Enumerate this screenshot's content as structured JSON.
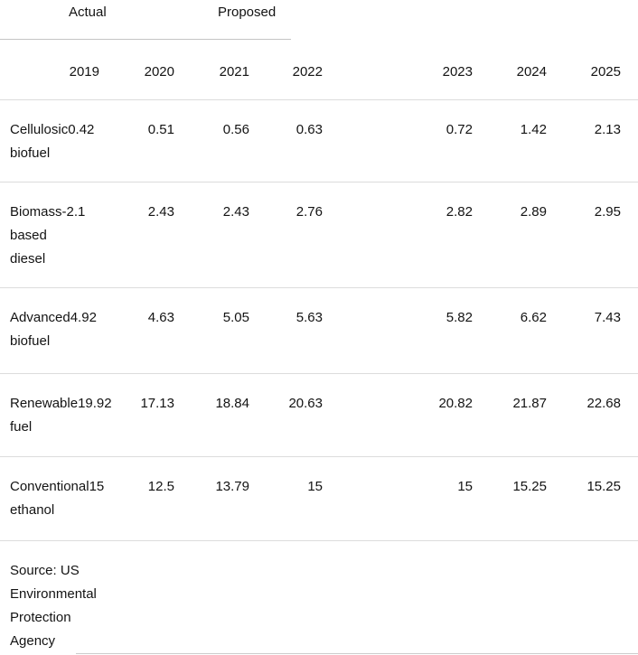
{
  "chart_data": {
    "type": "table",
    "column_group_labels": [
      "Actual",
      "Proposed"
    ],
    "columns": [
      "2019",
      "2020",
      "2021",
      "2022",
      "2023",
      "2024",
      "2025"
    ],
    "rows": [
      {
        "label": "Cellulosic biofuel",
        "label_lines": [
          "Cellulosic",
          "biofuel"
        ],
        "values": [
          0.42,
          0.51,
          0.56,
          0.63,
          0.72,
          1.42,
          2.13
        ]
      },
      {
        "label": "Biomass-based diesel",
        "label_lines": [
          "Biomass-",
          "based",
          "diesel"
        ],
        "values": [
          2.1,
          2.43,
          2.43,
          2.76,
          2.82,
          2.89,
          2.95
        ]
      },
      {
        "label": "Advanced biofuel",
        "label_lines": [
          "Advanced",
          "biofuel"
        ],
        "values": [
          4.92,
          4.63,
          5.05,
          5.63,
          5.82,
          6.62,
          7.43
        ]
      },
      {
        "label": "Renewable fuel",
        "label_lines": [
          "Renewable",
          "fuel"
        ],
        "values": [
          19.92,
          17.13,
          18.84,
          20.63,
          20.82,
          21.87,
          22.68
        ]
      },
      {
        "label": "Conventional ethanol",
        "label_lines": [
          "Conventional",
          "ethanol"
        ],
        "values": [
          15,
          12.5,
          13.79,
          15,
          15,
          15.25,
          15.25
        ]
      }
    ],
    "source": "Source: US Environmental Protection Agency"
  },
  "footer": {
    "lines": [
      "Source: US",
      "Environmental",
      "Protection",
      "Agency"
    ]
  },
  "colors": {
    "text": "#131313",
    "rule_strong": "#c5c5c5",
    "rule_light": "#dcdcdc",
    "background": "#ffffff"
  }
}
